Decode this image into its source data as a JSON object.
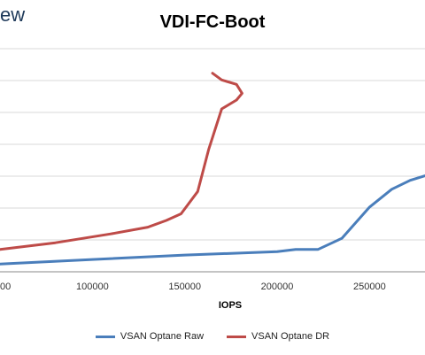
{
  "logo_text": "ew",
  "chart_data": {
    "type": "line",
    "title": "VDI-FC-Boot",
    "xlabel": "IOPS",
    "ylabel": "",
    "x_ticks": [
      "100000",
      "150000",
      "200000",
      "250000"
    ],
    "x_tick_values": [
      100000,
      150000,
      200000,
      250000
    ],
    "xlim": [
      50000,
      280000
    ],
    "ylim": [
      0,
      10
    ],
    "grid": true,
    "legend_position": "bottom",
    "series": [
      {
        "name": "VSAN Optane Raw",
        "color": "#4a7ebb",
        "x": [
          50000,
          100000,
          150000,
          200000,
          210000,
          222000,
          235000,
          250000,
          262000,
          272000,
          280000
        ],
        "y": [
          0.35,
          0.55,
          0.75,
          0.9,
          1.0,
          1.0,
          1.5,
          2.9,
          3.7,
          4.1,
          4.3
        ]
      },
      {
        "name": "VSAN Optane DR",
        "color": "#be4b48",
        "x": [
          50000,
          80000,
          110000,
          130000,
          140000,
          148000,
          157000,
          163000,
          170000,
          178000,
          181000,
          178000,
          170000,
          165000
        ],
        "y": [
          1.0,
          1.3,
          1.7,
          2.0,
          2.3,
          2.6,
          3.6,
          5.5,
          7.3,
          7.7,
          8.0,
          8.4,
          8.6,
          8.9
        ]
      }
    ]
  }
}
